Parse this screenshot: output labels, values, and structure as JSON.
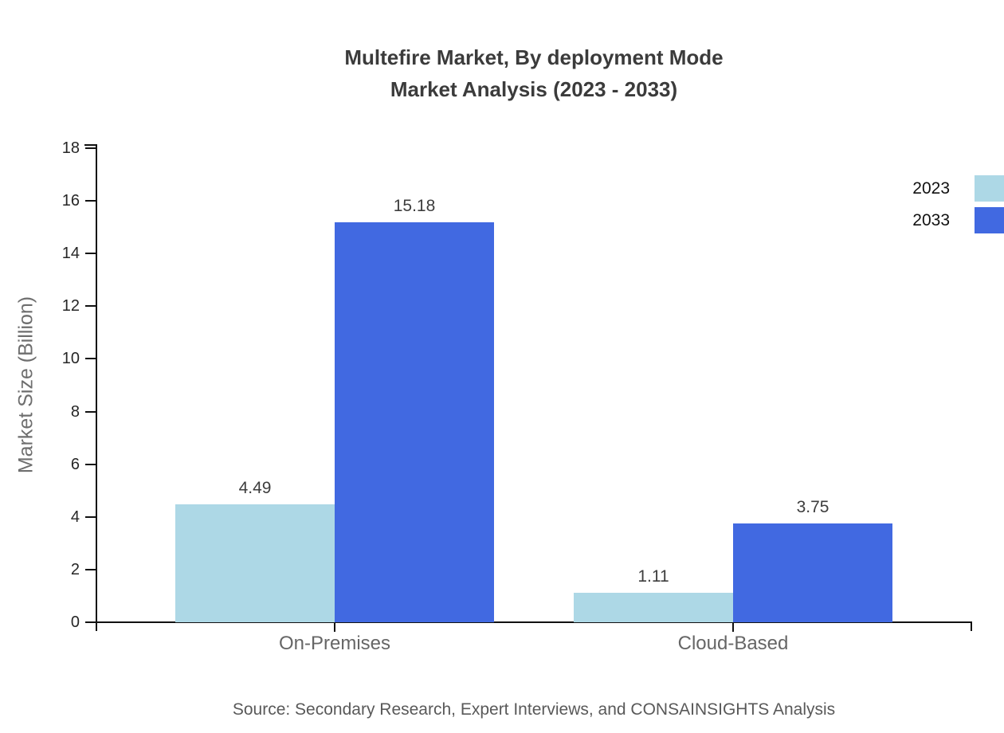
{
  "title": {
    "line1": "Multefire Market, By deployment Mode",
    "line2": "Market Analysis (2023 - 2033)"
  },
  "chart_data": {
    "type": "bar",
    "title": "Multefire Market, By deployment Mode Market Analysis (2023 - 2033)",
    "categories": [
      "On-Premises",
      "Cloud-Based"
    ],
    "series": [
      {
        "name": "2023",
        "color": "#ADD8E6",
        "values": [
          4.49,
          1.11
        ]
      },
      {
        "name": "2033",
        "color": "#4169E1",
        "values": [
          15.18,
          3.75
        ]
      }
    ],
    "value_labels": [
      [
        "4.49",
        "1.11"
      ],
      [
        "15.18",
        "3.75"
      ]
    ],
    "xlabel": "",
    "ylabel": "Market Size (Billion)",
    "ylim": [
      0,
      18
    ],
    "yticks": [
      0,
      2,
      4,
      6,
      8,
      10,
      12,
      14,
      16,
      18
    ],
    "grid": false,
    "legend_position": "right-top"
  },
  "source": "Source: Secondary Research, Expert Interviews, and CONSAINSIGHTS Analysis"
}
